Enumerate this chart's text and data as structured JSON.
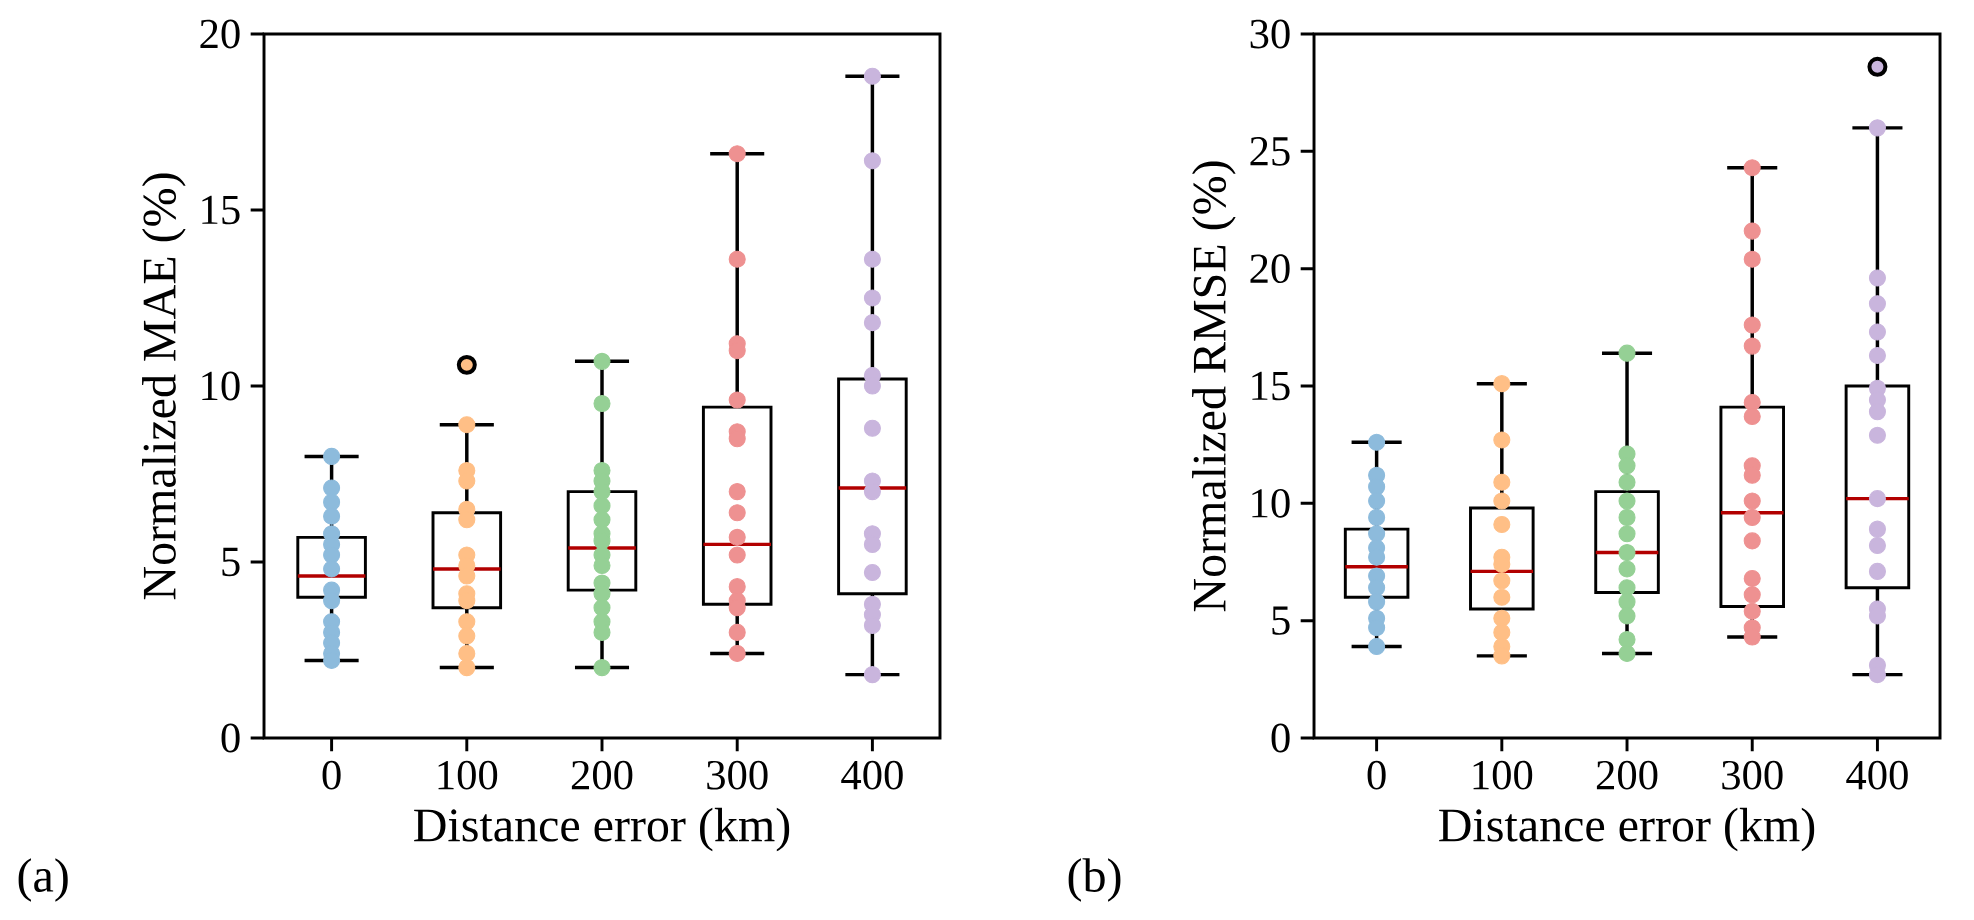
{
  "chart_data": [
    {
      "type": "box",
      "categories": [
        "0",
        "100",
        "200",
        "300",
        "400"
      ],
      "xlabel": "Distance error (km)",
      "ylabel": "Normalized MAE (%)",
      "ylim": [
        0,
        20
      ],
      "yticks": [
        0,
        5,
        10,
        15,
        20
      ],
      "marker": "circle",
      "annotations": [
        "(a)"
      ],
      "boxes": [
        {
          "low": 2.2,
          "q1": 4.0,
          "median": 4.6,
          "q3": 5.7,
          "high": 8.0
        },
        {
          "low": 2.0,
          "q1": 3.7,
          "median": 4.8,
          "q3": 6.4,
          "high": 8.9,
          "outliers": [
            10.6
          ]
        },
        {
          "low": 2.0,
          "q1": 4.2,
          "median": 5.4,
          "q3": 7.0,
          "high": 10.7
        },
        {
          "low": 2.4,
          "q1": 3.8,
          "median": 5.5,
          "q3": 9.4,
          "high": 16.6
        },
        {
          "low": 1.8,
          "q1": 4.1,
          "median": 7.1,
          "q3": 10.2,
          "high": 18.8
        }
      ],
      "series": [
        {
          "type": "scatter",
          "color": "#8dbbdc",
          "x": [
            "0",
            "0",
            "0",
            "0",
            "0",
            "0",
            "0",
            "0",
            "0",
            "0",
            "0",
            "0",
            "0",
            "0",
            "0",
            "0"
          ],
          "values": [
            8.0,
            7.1,
            6.7,
            6.3,
            5.8,
            5.5,
            5.2,
            4.8,
            null,
            4.2,
            3.9,
            3.3,
            3.0,
            2.7,
            2.4,
            2.2
          ]
        },
        {
          "type": "scatter",
          "color": "#ffbf86",
          "x": [
            "100",
            "100",
            "100",
            "100",
            "100",
            "100",
            "100",
            "100",
            "100",
            "100",
            "100",
            "100",
            "100",
            "100"
          ],
          "values": [
            8.9,
            7.6,
            7.3,
            6.5,
            6.2,
            5.2,
            4.9,
            4.6,
            4.1,
            3.9,
            3.3,
            2.9,
            2.4,
            2.0
          ]
        },
        {
          "type": "scatter",
          "color": "#95d095",
          "x": [
            "200",
            "200",
            "200",
            "200",
            "200",
            "200",
            "200",
            "200",
            "200",
            "200",
            "200",
            "200",
            "200",
            "200",
            "200",
            "200",
            "200"
          ],
          "values": [
            10.7,
            9.5,
            7.6,
            7.3,
            7.0,
            6.6,
            6.2,
            5.8,
            5.6,
            5.2,
            4.9,
            4.4,
            4.1,
            3.7,
            3.3,
            3.0,
            2.0
          ]
        },
        {
          "type": "scatter",
          "color": "#ee9191",
          "x": [
            "300",
            "300",
            "300",
            "300",
            "300",
            "300",
            "300",
            "300",
            "300",
            "300",
            "300",
            "300",
            "300",
            "300",
            "300",
            "300"
          ],
          "values": [
            16.6,
            13.6,
            11.2,
            11.0,
            9.6,
            8.7,
            8.5,
            7.0,
            6.4,
            5.7,
            5.2,
            4.3,
            3.9,
            3.7,
            3.0,
            2.4
          ]
        },
        {
          "type": "scatter",
          "color": "#c9b5dd",
          "x": [
            "400",
            "400",
            "400",
            "400",
            "400",
            "400",
            "400",
            "400",
            "400",
            "400",
            "400",
            "400",
            "400",
            "400",
            "400",
            "400",
            "400"
          ],
          "values": [
            18.8,
            16.4,
            13.6,
            12.5,
            11.8,
            10.3,
            10.0,
            8.8,
            7.3,
            7.0,
            5.8,
            5.5,
            4.7,
            3.8,
            3.5,
            3.2,
            1.8
          ]
        }
      ]
    },
    {
      "type": "box",
      "categories": [
        "0",
        "100",
        "200",
        "300",
        "400"
      ],
      "xlabel": "Distance error (km)",
      "ylabel": "Normalized RMSE (%)",
      "ylim": [
        0,
        30
      ],
      "yticks": [
        0,
        5,
        10,
        15,
        20,
        25,
        30
      ],
      "marker": "circle",
      "annotations": [
        "(b)"
      ],
      "boxes": [
        {
          "low": 3.9,
          "q1": 6.0,
          "median": 7.3,
          "q3": 8.9,
          "high": 12.6
        },
        {
          "low": 3.5,
          "q1": 5.5,
          "median": 7.1,
          "q3": 9.8,
          "high": 15.1
        },
        {
          "low": 3.6,
          "q1": 6.2,
          "median": 7.9,
          "q3": 10.5,
          "high": 16.4
        },
        {
          "low": 4.3,
          "q1": 5.6,
          "median": 9.6,
          "q3": 14.1,
          "high": 24.3
        },
        {
          "low": 2.7,
          "q1": 6.4,
          "median": 10.2,
          "q3": 15.0,
          "high": 26.0,
          "outliers": [
            28.6
          ]
        }
      ],
      "series": [
        {
          "type": "scatter",
          "color": "#8dbbdc",
          "x": [
            "0",
            "0",
            "0",
            "0",
            "0",
            "0",
            "0",
            "0",
            "0",
            "0",
            "0",
            "0",
            "0",
            "0"
          ],
          "values": [
            12.6,
            11.2,
            10.7,
            10.1,
            9.4,
            8.7,
            8.1,
            7.7,
            6.9,
            6.4,
            5.8,
            5.1,
            4.7,
            3.9
          ]
        },
        {
          "type": "scatter",
          "color": "#ffbf86",
          "x": [
            "100",
            "100",
            "100",
            "100",
            "100",
            "100",
            "100",
            "100",
            "100",
            "100",
            "100",
            "100",
            "100"
          ],
          "values": [
            15.1,
            12.7,
            10.9,
            10.1,
            9.1,
            7.7,
            7.4,
            6.7,
            6.0,
            5.1,
            4.5,
            3.9,
            3.5
          ]
        },
        {
          "type": "scatter",
          "color": "#95d095",
          "x": [
            "200",
            "200",
            "200",
            "200",
            "200",
            "200",
            "200",
            "200",
            "200",
            "200",
            "200",
            "200",
            "200",
            "200"
          ],
          "values": [
            16.4,
            12.1,
            11.6,
            10.9,
            10.1,
            9.4,
            8.7,
            7.9,
            7.2,
            6.4,
            5.8,
            5.2,
            4.2,
            3.6
          ]
        },
        {
          "type": "scatter",
          "color": "#ee9191",
          "x": [
            "300",
            "300",
            "300",
            "300",
            "300",
            "300",
            "300",
            "300",
            "300",
            "300",
            "300",
            "300",
            "300",
            "300",
            "300",
            "300",
            "300"
          ],
          "values": [
            24.3,
            21.6,
            20.4,
            17.6,
            16.7,
            14.3,
            13.7,
            11.6,
            11.2,
            10.1,
            9.4,
            8.4,
            6.8,
            6.1,
            5.4,
            4.7,
            4.3
          ]
        },
        {
          "type": "scatter",
          "color": "#c9b5dd",
          "x": [
            "400",
            "400",
            "400",
            "400",
            "400",
            "400",
            "400",
            "400",
            "400",
            "400",
            "400",
            "400",
            "400",
            "400",
            "400",
            "400",
            "400"
          ],
          "values": [
            26.0,
            19.6,
            18.5,
            17.3,
            16.3,
            14.9,
            14.4,
            13.9,
            12.9,
            10.2,
            8.9,
            8.2,
            7.1,
            5.5,
            5.2,
            3.1,
            2.7
          ]
        }
      ]
    }
  ]
}
